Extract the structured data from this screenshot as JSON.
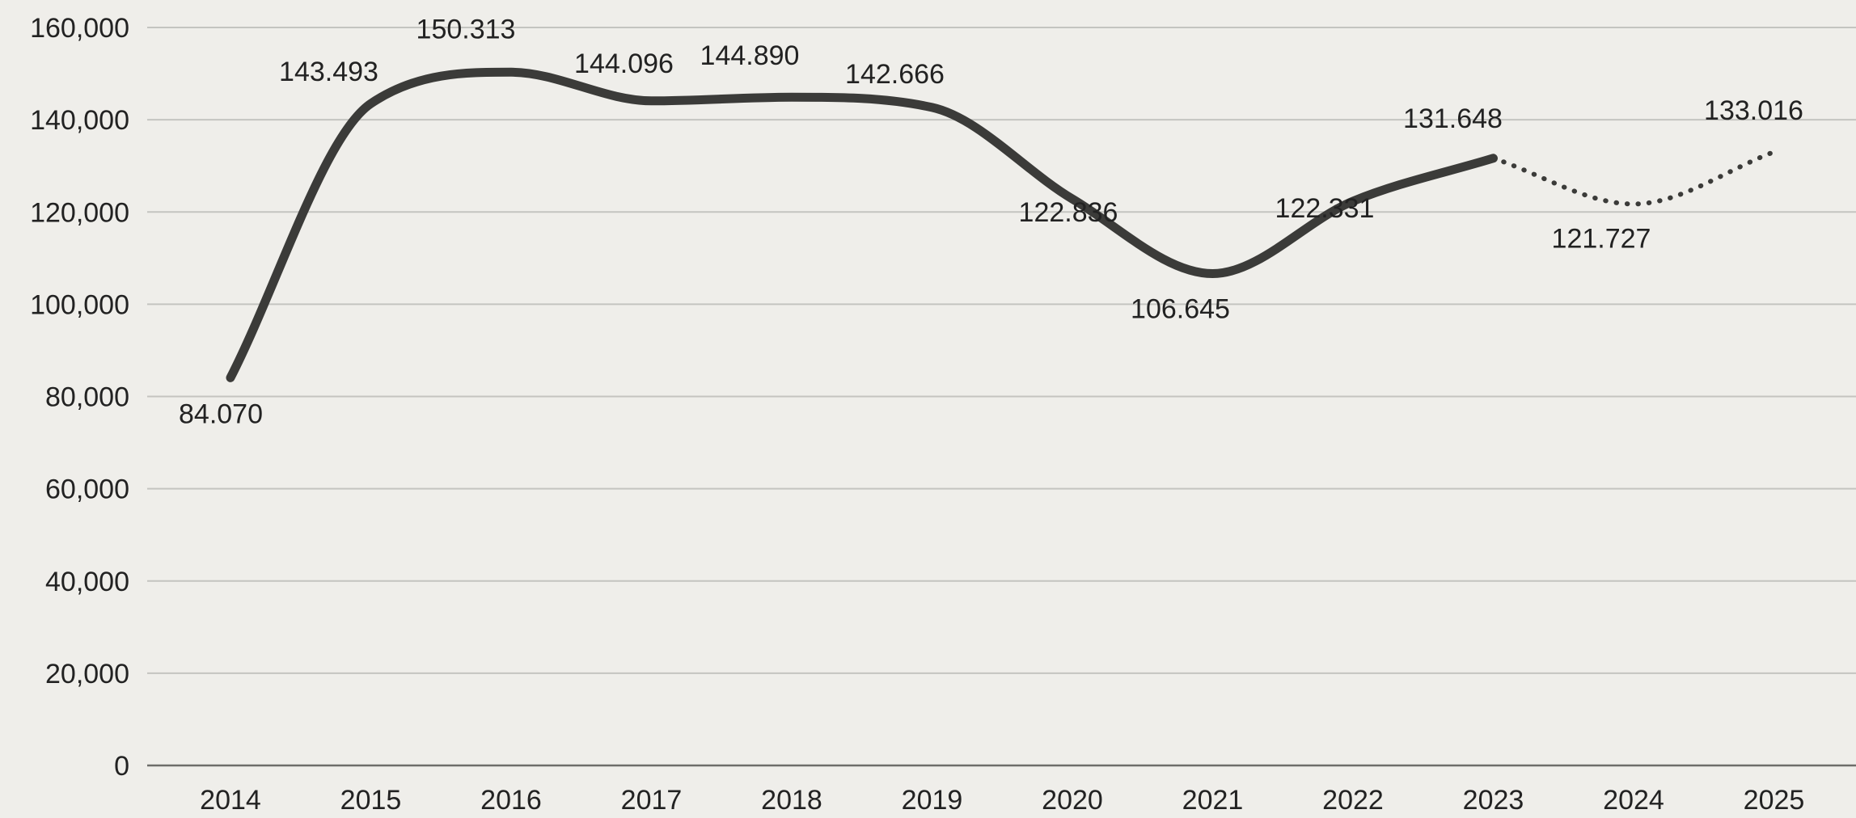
{
  "chart_data": {
    "type": "line",
    "x": [
      "2014",
      "2015",
      "2016",
      "2017",
      "2018",
      "2019",
      "2020",
      "2021",
      "2022",
      "2023",
      "2024",
      "2025"
    ],
    "series": [
      {
        "values": [
          84070,
          143493,
          150313,
          144096,
          144890,
          142666,
          122836,
          106645,
          122331,
          131648,
          121727,
          133016
        ],
        "labels": [
          "84.070",
          "143.493",
          "150.313",
          "144.096",
          "144.890",
          "142.666",
          "122.836",
          "106.645",
          "122.331",
          "131.648",
          "121.727",
          "133.016"
        ],
        "solid_through": "2023",
        "dotted_from": "2023"
      }
    ],
    "yticks": [
      "0",
      "20,000",
      "40,000",
      "60,000",
      "80,000",
      "100,000",
      "120,000",
      "140,000",
      "160,000"
    ],
    "ylim": [
      0,
      160000
    ],
    "grid": true,
    "legend": "none",
    "colors": {
      "line": "#3b3b39",
      "grid": "#c4c4c0",
      "text": "#222222",
      "background": "#efeeea"
    }
  }
}
